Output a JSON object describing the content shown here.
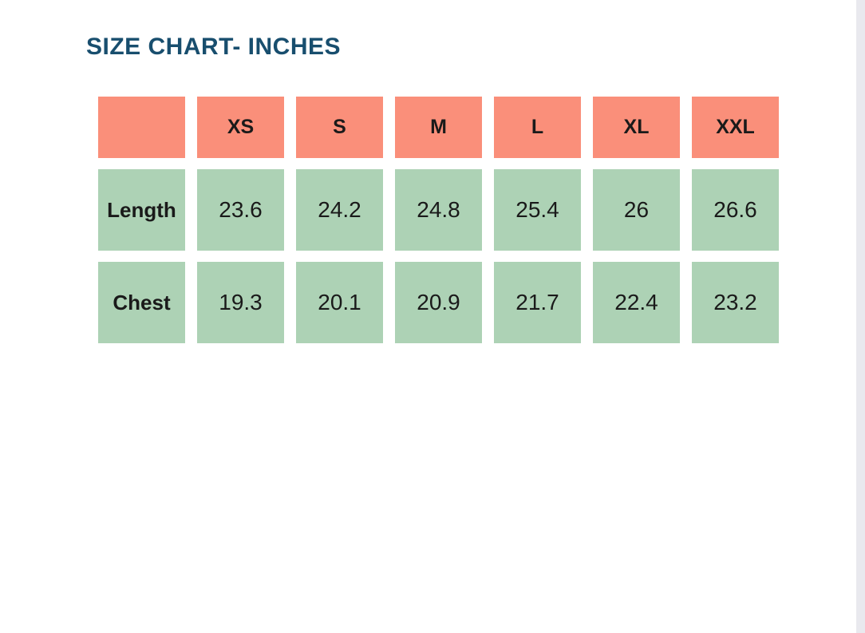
{
  "colors": {
    "page_bg": "#FFFFFF",
    "title_color": "#184E6E",
    "header_cell_bg": "#FA8F7A",
    "data_cell_bg": "#ADD2B5",
    "cell_text_color": "#1A1A1A",
    "scrollbar_track": "#E9E9EE"
  },
  "chart_data": {
    "type": "table",
    "title": "SIZE CHART- INCHES",
    "columns": [
      "",
      "XS",
      "S",
      "M",
      "L",
      "XL",
      "XXL"
    ],
    "rows": [
      {
        "label": "Length",
        "values": [
          "23.6",
          "24.2",
          "24.8",
          "25.4",
          "26",
          "26.6"
        ]
      },
      {
        "label": "Chest",
        "values": [
          "19.3",
          "20.1",
          "20.9",
          "21.7",
          "22.4",
          "23.2"
        ]
      }
    ]
  }
}
